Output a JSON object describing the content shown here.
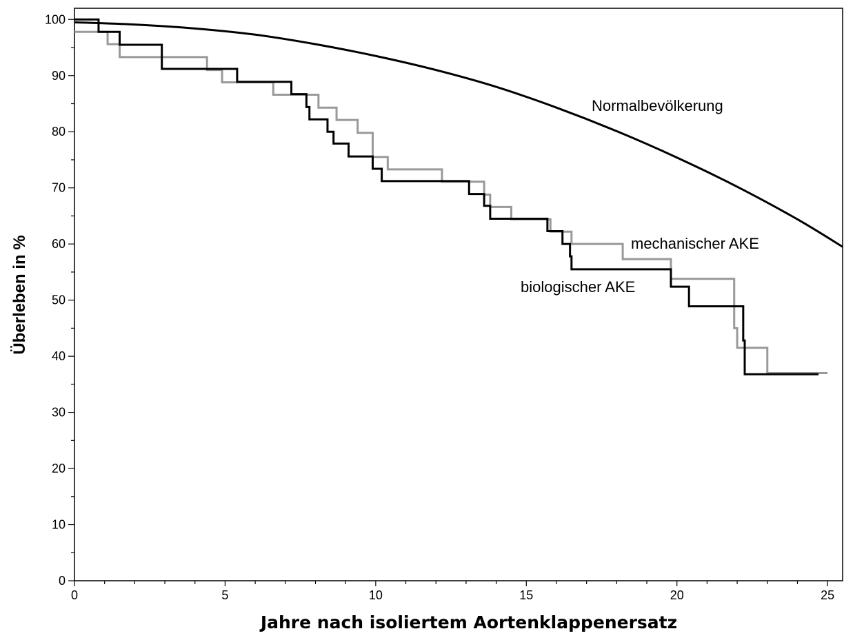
{
  "chart_data": {
    "type": "line",
    "xlabel": "Jahre nach isoliertem Aortenklappenersatz",
    "ylabel": "Überleben in %",
    "xlim": [
      0,
      25.5
    ],
    "ylim": [
      0,
      102
    ],
    "x_ticks": [
      0,
      5,
      10,
      15,
      20,
      25
    ],
    "x_tick_labels": [
      "0",
      "5",
      "10",
      "15",
      "20",
      "25"
    ],
    "x_minor_step": 1,
    "y_ticks": [
      0,
      10,
      20,
      30,
      40,
      50,
      60,
      70,
      80,
      90,
      100
    ],
    "y_tick_labels": [
      "0",
      "10",
      "20",
      "30",
      "40",
      "50",
      "60",
      "70",
      "80",
      "90",
      "100"
    ],
    "y_minor_step": 5,
    "grid": false,
    "series": [
      {
        "name": "Normalbevölkerung",
        "color": "#000000",
        "style": "smooth",
        "x": [
          0,
          2,
          4,
          6,
          8,
          10,
          12,
          14,
          16,
          18,
          20,
          22,
          24,
          25.5
        ],
        "y": [
          99.5,
          99.1,
          98.4,
          97.3,
          95.6,
          93.5,
          91.0,
          88.0,
          84.3,
          80.1,
          75.4,
          70.2,
          64.4,
          59.5
        ]
      },
      {
        "name": "mechanischer AKE",
        "color": "#999999",
        "style": "step",
        "x": [
          0,
          0.7,
          1.1,
          1.5,
          3.1,
          4.4,
          4.9,
          6.6,
          7.8,
          8.1,
          8.7,
          9.4,
          9.9,
          10.4,
          12.2,
          13.3,
          13.6,
          13.8,
          14.5,
          15.8,
          16.5,
          18.2,
          19.8,
          21.9,
          22.0,
          23.0,
          25.0
        ],
        "y": [
          97.8,
          97.8,
          95.6,
          93.3,
          93.3,
          91.0,
          88.8,
          86.6,
          86.6,
          84.3,
          82.1,
          79.8,
          75.5,
          73.3,
          71.1,
          71.1,
          68.8,
          66.6,
          64.4,
          62.2,
          60.0,
          57.3,
          53.8,
          45.0,
          41.5,
          37.0,
          37.0
        ]
      },
      {
        "name": "biologischer AKE",
        "color": "#000000",
        "style": "step",
        "x": [
          0,
          0.8,
          1.5,
          2.9,
          5.4,
          7.2,
          7.7,
          7.8,
          8.4,
          8.6,
          9.1,
          9.9,
          10.2,
          13.1,
          13.6,
          13.8,
          15.7,
          16.2,
          16.45,
          16.5,
          19.8,
          20.4,
          22.2,
          22.25,
          24.7
        ],
        "y": [
          100,
          97.8,
          95.5,
          91.2,
          88.9,
          86.7,
          84.4,
          82.2,
          80.0,
          77.9,
          75.6,
          73.4,
          71.2,
          68.9,
          66.8,
          64.5,
          62.3,
          60.0,
          57.8,
          55.5,
          52.4,
          48.9,
          42.8,
          36.8,
          36.8
        ]
      }
    ],
    "annotations": [
      {
        "series": "Normalbevölkerung",
        "text": "Normalbevölkerung"
      },
      {
        "series": "mechanischer AKE",
        "text": "mechanischer AKE"
      },
      {
        "series": "biologischer AKE",
        "text": "biologischer AKE"
      }
    ]
  }
}
